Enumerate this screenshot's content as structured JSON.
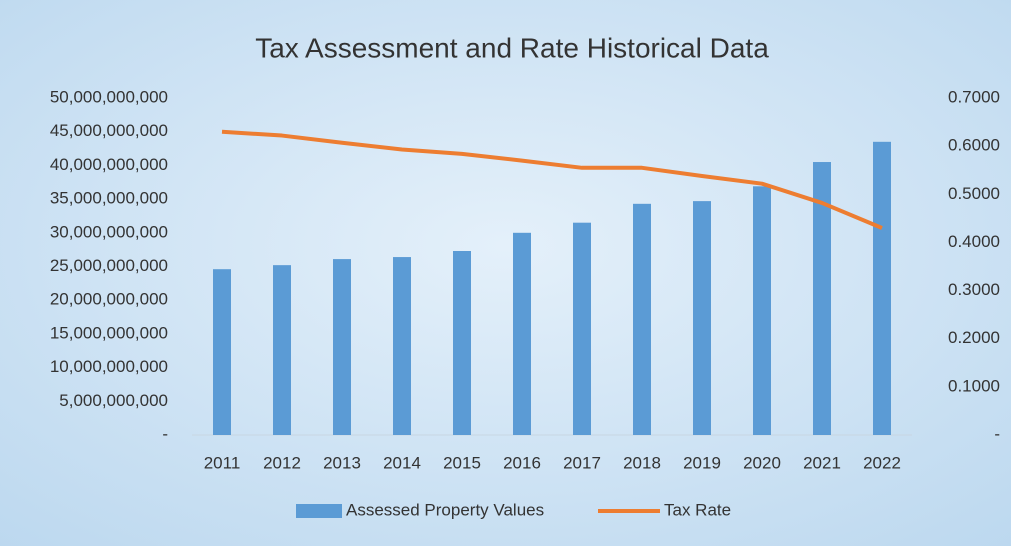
{
  "chart_data": {
    "type": "bar_line",
    "title": "Tax Assessment and Rate Historical Data",
    "categories": [
      "2011",
      "2012",
      "2013",
      "2014",
      "2015",
      "2016",
      "2017",
      "2018",
      "2019",
      "2020",
      "2021",
      "2022"
    ],
    "series": [
      {
        "name": "Assessed Property Values",
        "type": "bar",
        "color": "#5b9bd5",
        "values": [
          24600000000,
          25200000000,
          26100000000,
          26400000000,
          27300000000,
          30000000000,
          31500000000,
          34300000000,
          34700000000,
          36900000000,
          40500000000,
          43500000000
        ]
      },
      {
        "name": "Tax Rate",
        "type": "line",
        "axis": "y2",
        "color": "#ed7d31",
        "values": [
          0.63,
          0.622,
          0.607,
          0.593,
          0.584,
          0.57,
          0.555,
          0.555,
          0.538,
          0.522,
          0.482,
          0.43
        ]
      }
    ],
    "ylim": [
      0,
      50000000000
    ],
    "yticks": [
      {
        "value": 0,
        "label": "-"
      },
      {
        "value": 5000000000,
        "label": "5,000,000,000"
      },
      {
        "value": 10000000000,
        "label": "10,000,000,000"
      },
      {
        "value": 15000000000,
        "label": "15,000,000,000"
      },
      {
        "value": 20000000000,
        "label": "20,000,000,000"
      },
      {
        "value": 25000000000,
        "label": "25,000,000,000"
      },
      {
        "value": 30000000000,
        "label": "30,000,000,000"
      },
      {
        "value": 35000000000,
        "label": "35,000,000,000"
      },
      {
        "value": 40000000000,
        "label": "40,000,000,000"
      },
      {
        "value": 45000000000,
        "label": "45,000,000,000"
      },
      {
        "value": 50000000000,
        "label": "50,000,000,000"
      }
    ],
    "y2lim": [
      0,
      0.7
    ],
    "y2ticks": [
      {
        "value": 0,
        "label": "-"
      },
      {
        "value": 0.1,
        "label": "0.1000"
      },
      {
        "value": 0.2,
        "label": "0.2000"
      },
      {
        "value": 0.3,
        "label": "0.3000"
      },
      {
        "value": 0.4,
        "label": "0.4000"
      },
      {
        "value": 0.5,
        "label": "0.5000"
      },
      {
        "value": 0.6,
        "label": "0.6000"
      },
      {
        "value": 0.7,
        "label": "0.7000"
      }
    ],
    "legend": "bottom"
  }
}
